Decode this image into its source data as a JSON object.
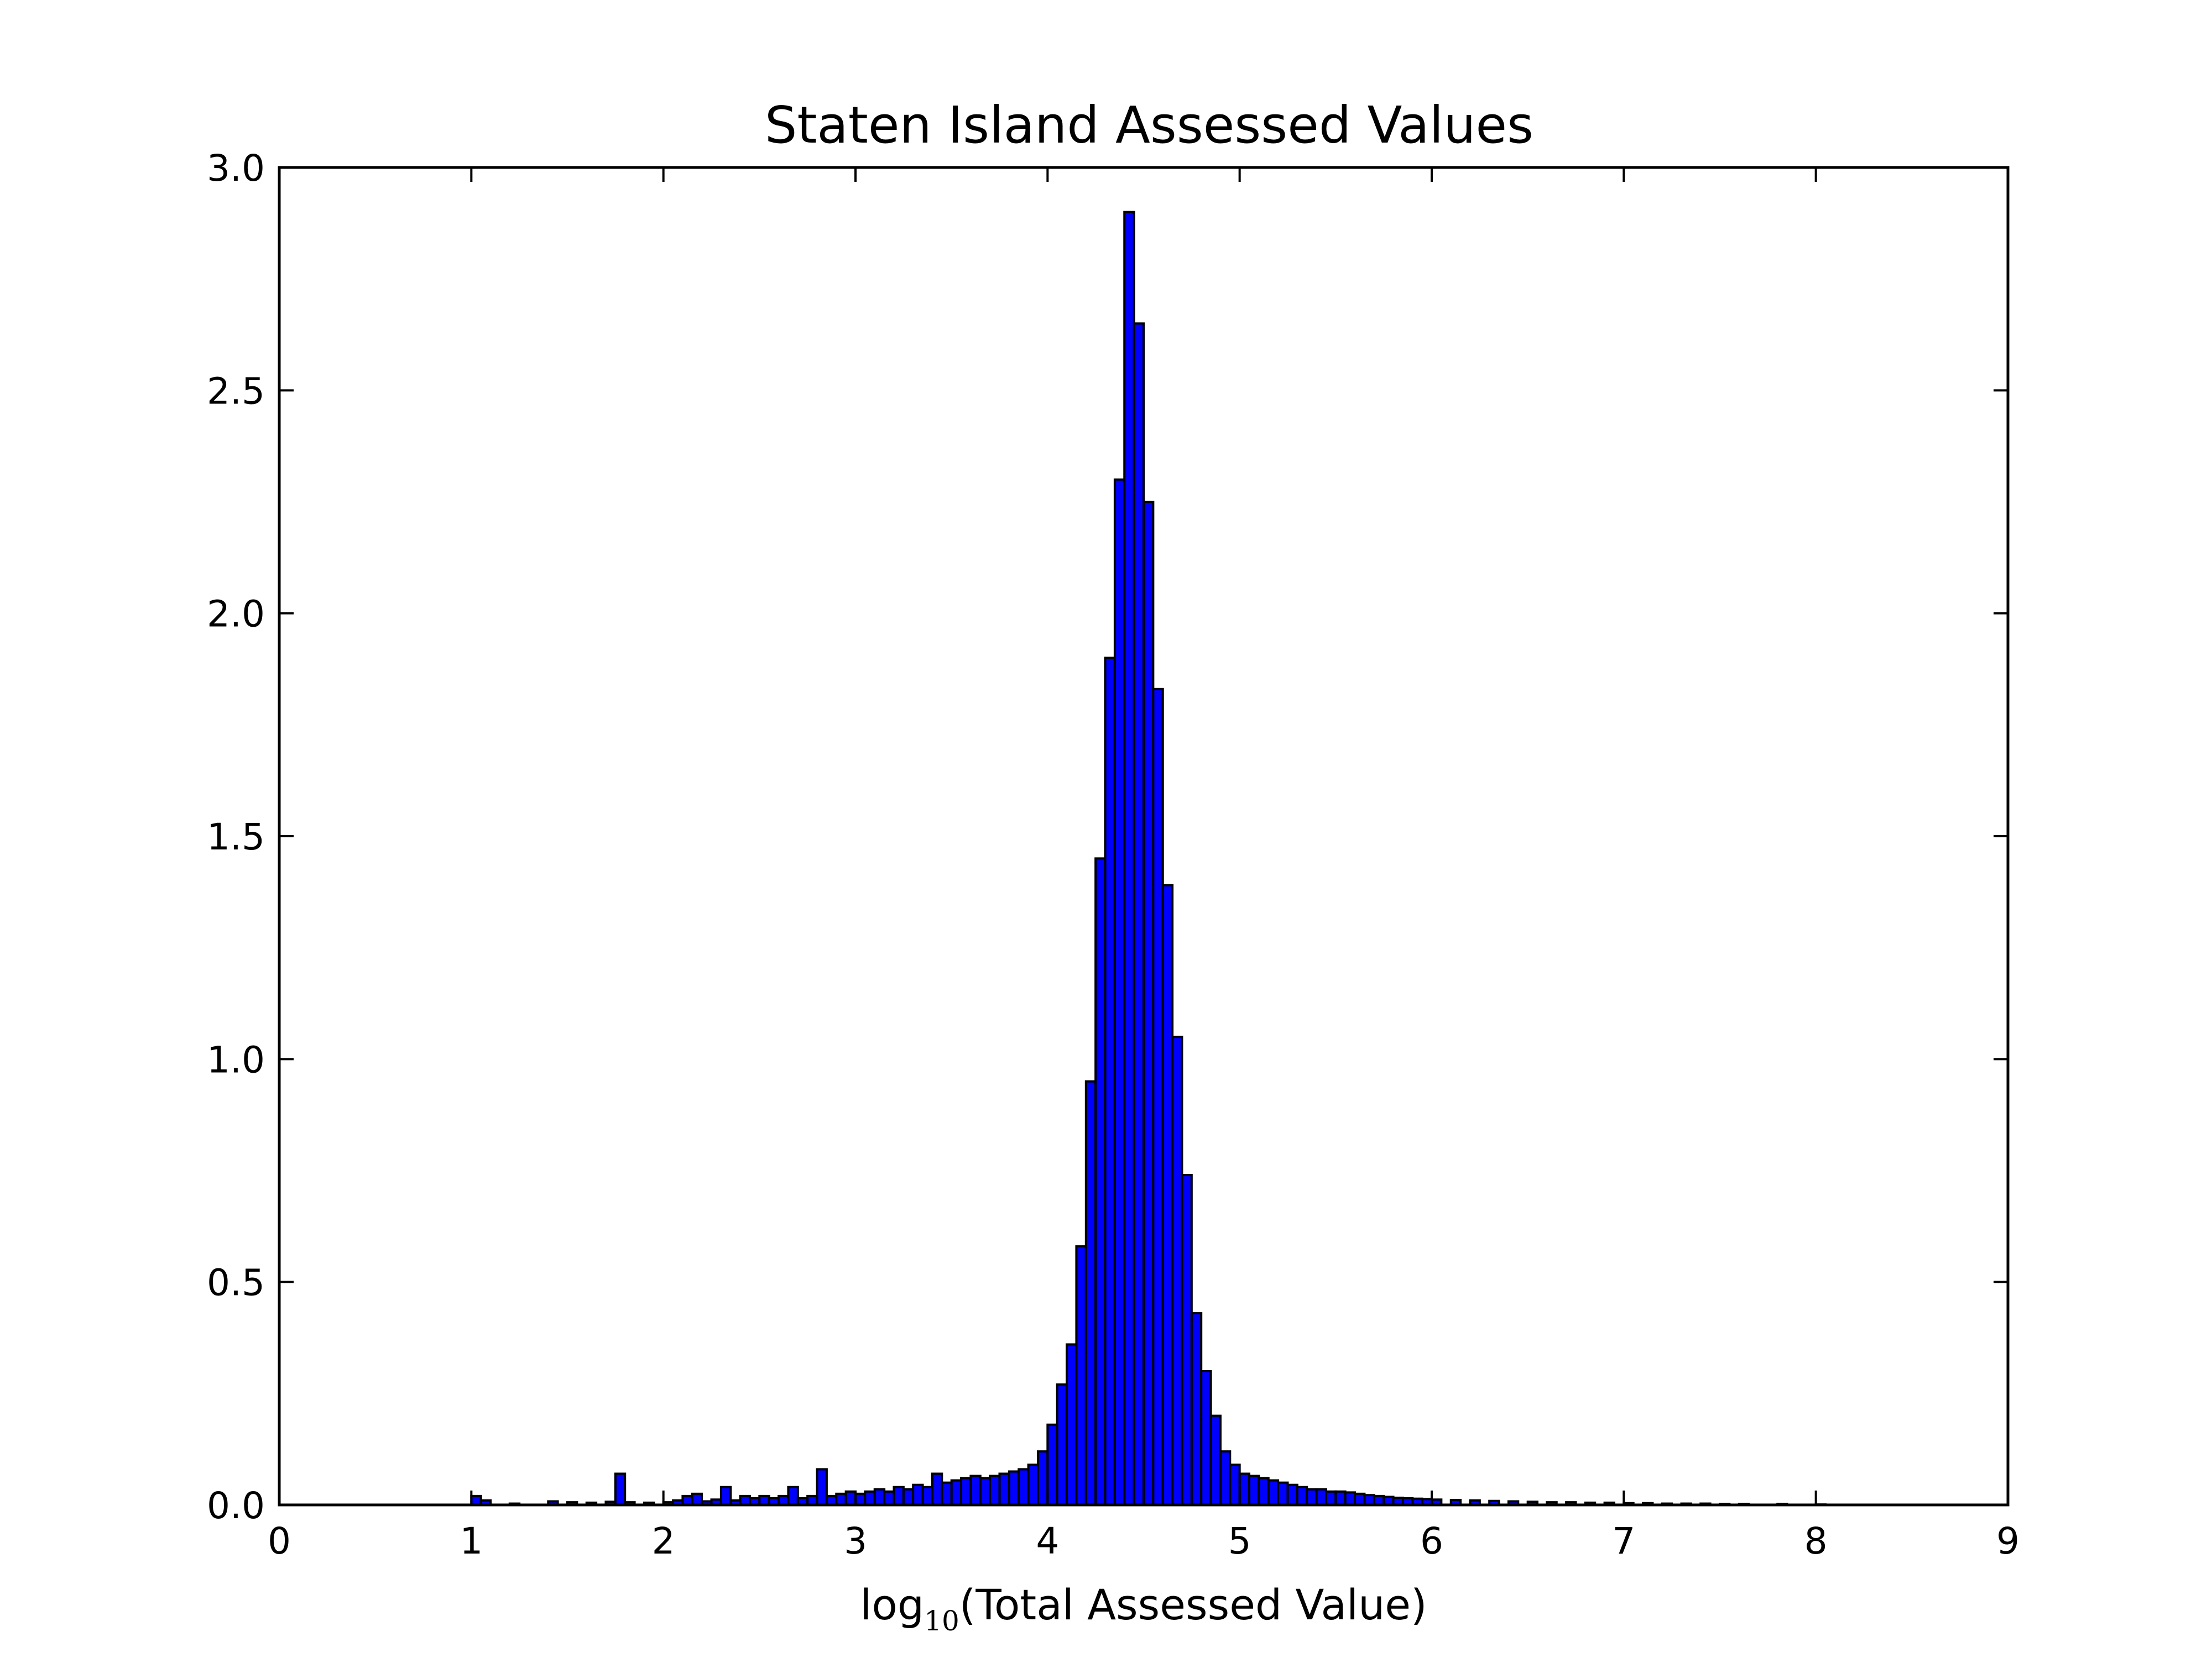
{
  "chart_data": {
    "type": "bar",
    "title": "Staten Island Assessed Values",
    "xlabel": {
      "prefix": "log",
      "subscript": "10",
      "suffix": "(Total Assessed Value)"
    },
    "ylabel": "",
    "xlim": [
      0,
      9
    ],
    "ylim": [
      0.0,
      3.0
    ],
    "xticks": [
      "0",
      "1",
      "2",
      "3",
      "4",
      "5",
      "6",
      "7",
      "8",
      "9"
    ],
    "yticks": [
      "0.0",
      "0.5",
      "1.0",
      "1.5",
      "2.0",
      "2.5",
      "3.0"
    ],
    "grid": false,
    "bar_color": "#0000ff",
    "edge_color": "#000000",
    "series": [
      {
        "x": [
          1.0,
          1.05,
          1.2,
          1.4,
          1.5,
          1.6,
          1.7,
          1.75,
          1.8,
          1.9,
          2.0,
          2.05,
          2.1,
          2.15,
          2.2,
          2.25,
          2.3,
          2.35,
          2.4,
          2.45,
          2.5,
          2.55,
          2.6,
          2.65,
          2.7,
          2.75,
          2.8,
          2.85,
          2.9,
          2.95,
          3.0,
          3.05,
          3.1,
          3.15,
          3.2,
          3.25,
          3.3,
          3.35,
          3.4,
          3.45,
          3.5,
          3.55,
          3.6,
          3.65,
          3.7,
          3.75,
          3.8,
          3.85,
          3.9,
          3.95,
          4.0,
          4.05,
          4.1,
          4.15,
          4.2,
          4.25,
          4.3,
          4.35,
          4.4,
          4.45,
          4.5,
          4.55,
          4.6,
          4.65,
          4.7,
          4.75,
          4.8,
          4.85,
          4.9,
          4.95,
          5.0,
          5.05,
          5.1,
          5.15,
          5.2,
          5.25,
          5.3,
          5.35,
          5.4,
          5.45,
          5.5,
          5.55,
          5.6,
          5.65,
          5.7,
          5.75,
          5.8,
          5.85,
          5.9,
          5.95,
          6.0,
          6.1,
          6.2,
          6.3,
          6.4,
          6.5,
          6.6,
          6.7,
          6.8,
          6.9,
          7.0,
          7.1,
          7.2,
          7.3,
          7.4,
          7.5,
          7.6,
          7.8,
          8.0
        ],
        "values": [
          0.02,
          0.01,
          0.003,
          0.008,
          0.006,
          0.005,
          0.007,
          0.07,
          0.006,
          0.005,
          0.006,
          0.01,
          0.02,
          0.025,
          0.008,
          0.012,
          0.04,
          0.01,
          0.02,
          0.015,
          0.02,
          0.015,
          0.02,
          0.04,
          0.015,
          0.02,
          0.08,
          0.02,
          0.025,
          0.03,
          0.025,
          0.03,
          0.035,
          0.03,
          0.04,
          0.035,
          0.045,
          0.04,
          0.07,
          0.05,
          0.055,
          0.06,
          0.065,
          0.06,
          0.065,
          0.07,
          0.075,
          0.08,
          0.09,
          0.12,
          0.18,
          0.27,
          0.36,
          0.58,
          0.95,
          1.45,
          1.9,
          2.3,
          2.9,
          2.65,
          2.25,
          1.83,
          1.39,
          1.05,
          0.74,
          0.43,
          0.3,
          0.2,
          0.12,
          0.09,
          0.07,
          0.065,
          0.06,
          0.055,
          0.05,
          0.045,
          0.04,
          0.035,
          0.035,
          0.03,
          0.03,
          0.028,
          0.025,
          0.022,
          0.02,
          0.018,
          0.016,
          0.015,
          0.014,
          0.013,
          0.012,
          0.011,
          0.01,
          0.009,
          0.008,
          0.007,
          0.006,
          0.006,
          0.005,
          0.005,
          0.004,
          0.004,
          0.003,
          0.003,
          0.003,
          0.002,
          0.002,
          0.002,
          0.001
        ]
      }
    ]
  }
}
